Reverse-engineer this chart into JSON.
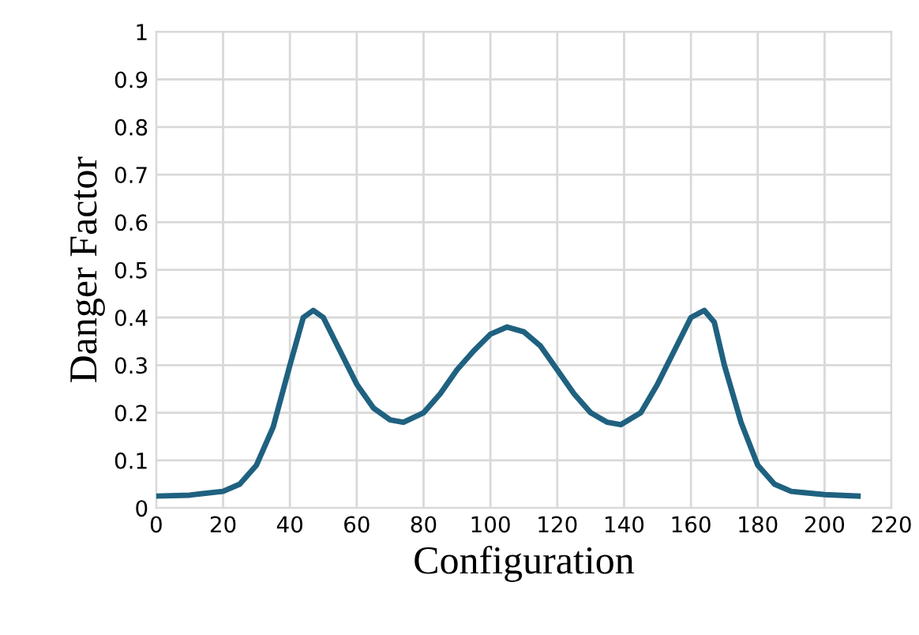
{
  "chart_data": {
    "type": "line",
    "xlabel": "Configuration",
    "ylabel": "Danger Factor",
    "x": [
      0,
      10,
      20,
      25,
      30,
      35,
      40,
      44,
      47,
      50,
      55,
      60,
      65,
      70,
      74,
      80,
      85,
      90,
      95,
      100,
      105,
      110,
      115,
      120,
      125,
      130,
      135,
      139,
      145,
      150,
      155,
      160,
      164,
      167,
      170,
      175,
      180,
      185,
      190,
      200,
      210
    ],
    "series": [
      {
        "color": "#1f6180",
        "values": [
          0.025,
          0.027,
          0.035,
          0.05,
          0.09,
          0.17,
          0.3,
          0.4,
          0.415,
          0.4,
          0.33,
          0.26,
          0.21,
          0.185,
          0.18,
          0.2,
          0.24,
          0.29,
          0.33,
          0.365,
          0.38,
          0.37,
          0.34,
          0.29,
          0.24,
          0.2,
          0.18,
          0.175,
          0.2,
          0.26,
          0.33,
          0.4,
          0.415,
          0.39,
          0.3,
          0.18,
          0.09,
          0.05,
          0.035,
          0.028,
          0.025
        ]
      }
    ],
    "xlim": [
      0,
      220
    ],
    "xticks": [
      0,
      20,
      40,
      60,
      80,
      100,
      120,
      140,
      160,
      180,
      200,
      220
    ],
    "ylim": [
      0,
      1
    ],
    "yticks": [
      0,
      0.1,
      0.2,
      0.3,
      0.4,
      0.5,
      0.6,
      0.7,
      0.8,
      0.9,
      1
    ],
    "grid": true,
    "marker": "none",
    "line_style": "solid"
  }
}
